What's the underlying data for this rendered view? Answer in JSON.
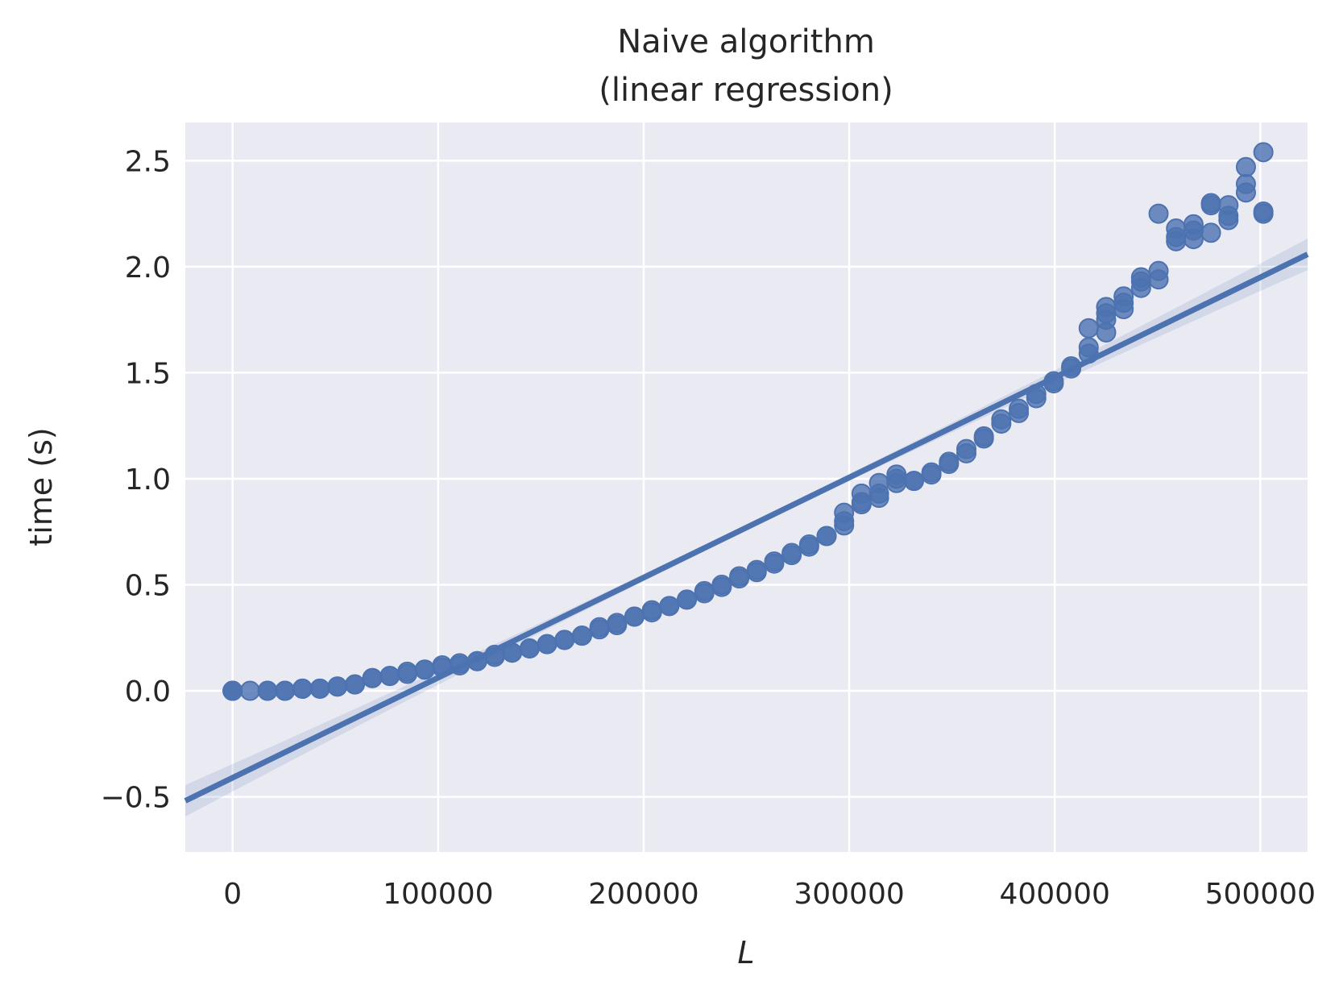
{
  "chart_data": {
    "type": "scatter",
    "title": "Naive algorithm",
    "subtitle": "(linear regression)",
    "xlabel": "L",
    "ylabel": "time (s)",
    "xlim": [
      -23000,
      523000
    ],
    "ylim": [
      -0.76,
      2.68
    ],
    "xticks": [
      0,
      100000,
      200000,
      300000,
      400000,
      500000
    ],
    "yticks": [
      -0.5,
      0.0,
      0.5,
      1.0,
      1.5,
      2.0,
      2.5
    ],
    "ytick_labels": [
      "−0.5",
      "0.0",
      "0.5",
      "1.0",
      "1.5",
      "2.0",
      "2.5"
    ],
    "grid": true,
    "background": "#eaeaf2",
    "grid_color": "#ffffff",
    "series": [
      {
        "color": "#4c72b0",
        "x": [
          0,
          0,
          0,
          8500,
          17000,
          17000,
          25500,
          25500,
          34000,
          34000,
          42500,
          42500,
          51000,
          51000,
          59500,
          59500,
          68000,
          68000,
          76500,
          76500,
          85000,
          85000,
          93500,
          93500,
          102000,
          102000,
          110500,
          110500,
          119000,
          119000,
          127500,
          127500,
          136000,
          136000,
          144500,
          144500,
          153000,
          153000,
          161500,
          161500,
          170000,
          170000,
          178500,
          178500,
          187000,
          187000,
          195500,
          195500,
          204000,
          204000,
          212500,
          212500,
          221000,
          221000,
          229500,
          229500,
          238000,
          238000,
          246500,
          246500,
          255000,
          255000,
          263500,
          263500,
          272000,
          272000,
          280500,
          280500,
          289000,
          289000,
          297500,
          297500,
          297500,
          306000,
          306000,
          306000,
          314500,
          314500,
          314500,
          323000,
          323000,
          323000,
          331500,
          331500,
          340000,
          340000,
          348500,
          348500,
          357000,
          357000,
          365500,
          365500,
          374000,
          374000,
          382500,
          382500,
          391000,
          391000,
          399500,
          399500,
          408000,
          408000,
          416500,
          416500,
          416500,
          425000,
          425000,
          425000,
          425000,
          433500,
          433500,
          433500,
          442000,
          442000,
          442000,
          450500,
          450500,
          450500,
          459000,
          459000,
          459000,
          467500,
          467500,
          467500,
          476000,
          476000,
          476000,
          484500,
          484500,
          484500,
          493000,
          493000,
          493000,
          501500,
          501500,
          501500
        ],
        "y": [
          0.0,
          0.0,
          0.0,
          0.0,
          0.0,
          0.0,
          0.0,
          0.0,
          0.01,
          0.01,
          0.01,
          0.01,
          0.02,
          0.02,
          0.03,
          0.03,
          0.06,
          0.06,
          0.07,
          0.07,
          0.08,
          0.09,
          0.1,
          0.1,
          0.12,
          0.11,
          0.13,
          0.12,
          0.14,
          0.14,
          0.16,
          0.17,
          0.18,
          0.18,
          0.2,
          0.2,
          0.22,
          0.22,
          0.24,
          0.24,
          0.26,
          0.26,
          0.3,
          0.29,
          0.32,
          0.31,
          0.35,
          0.35,
          0.38,
          0.37,
          0.4,
          0.4,
          0.43,
          0.43,
          0.47,
          0.46,
          0.5,
          0.49,
          0.54,
          0.53,
          0.57,
          0.56,
          0.61,
          0.6,
          0.65,
          0.64,
          0.69,
          0.68,
          0.73,
          0.73,
          0.84,
          0.8,
          0.78,
          0.93,
          0.88,
          0.89,
          0.98,
          0.93,
          0.91,
          1.02,
          1.0,
          0.98,
          0.99,
          0.99,
          1.03,
          1.02,
          1.08,
          1.07,
          1.14,
          1.12,
          1.2,
          1.19,
          1.28,
          1.26,
          1.33,
          1.31,
          1.4,
          1.38,
          1.46,
          1.45,
          1.53,
          1.52,
          1.71,
          1.62,
          1.59,
          1.81,
          1.75,
          1.69,
          1.78,
          1.86,
          1.83,
          1.8,
          1.95,
          1.93,
          1.9,
          1.98,
          1.94,
          2.25,
          2.18,
          2.14,
          2.12,
          2.2,
          2.17,
          2.13,
          2.3,
          2.29,
          2.16,
          2.29,
          2.24,
          2.22,
          2.47,
          2.39,
          2.35,
          2.54,
          2.26,
          2.25
        ]
      }
    ],
    "regression": {
      "slope": 4.72e-06,
      "intercept": -0.41
    }
  }
}
